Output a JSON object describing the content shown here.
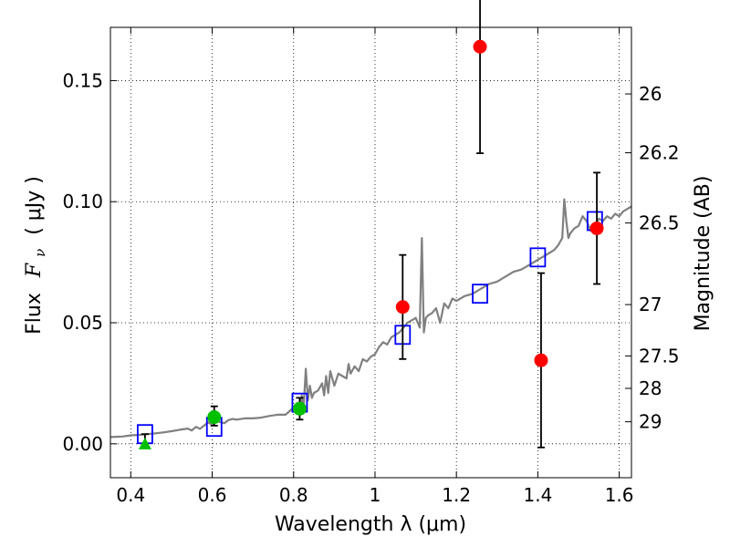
{
  "chart_data": {
    "type": "scatter",
    "xlabel": "Wavelength  λ (μm)",
    "ylabel_main": "Flux",
    "ylabel_symbol": "F",
    "ylabel_sub": "ν",
    "ylabel_unit": "( μJy )",
    "y2label": "Magnitude (AB)",
    "xlim": [
      0.35,
      1.63
    ],
    "ylim": [
      -0.014,
      0.172
    ],
    "grid": true,
    "x_ticks": [
      {
        "value": 0.4,
        "label": "0.4"
      },
      {
        "value": 0.6,
        "label": "0.6"
      },
      {
        "value": 0.8,
        "label": "0.8"
      },
      {
        "value": 1.0,
        "label": "1"
      },
      {
        "value": 1.2,
        "label": "1.2"
      },
      {
        "value": 1.4,
        "label": "1.4"
      },
      {
        "value": 1.6,
        "label": "1.6"
      }
    ],
    "y_ticks": [
      {
        "value": 0.0,
        "label": "0.00"
      },
      {
        "value": 0.05,
        "label": "0.05"
      },
      {
        "value": 0.1,
        "label": "0.10"
      },
      {
        "value": 0.15,
        "label": "0.15"
      }
    ],
    "y2_ticks": [
      {
        "mag": 26,
        "flux": 0.1445,
        "label": "26"
      },
      {
        "mag": 26.2,
        "flux": 0.1202,
        "label": "26.2"
      },
      {
        "mag": 26.5,
        "flux": 0.0912,
        "label": "26.5"
      },
      {
        "mag": 27,
        "flux": 0.0575,
        "label": "27"
      },
      {
        "mag": 27.5,
        "flux": 0.0363,
        "label": "27.5"
      },
      {
        "mag": 28,
        "flux": 0.0229,
        "label": "28"
      },
      {
        "mag": 29,
        "flux": 0.0091,
        "label": "29"
      }
    ],
    "series": [
      {
        "kind": "line",
        "color": "#808080",
        "x": [
          0.35,
          0.38,
          0.4,
          0.42,
          0.44,
          0.46,
          0.48,
          0.5,
          0.52,
          0.54,
          0.55,
          0.56,
          0.57,
          0.58,
          0.59,
          0.6,
          0.61,
          0.62,
          0.63,
          0.64,
          0.65,
          0.66,
          0.68,
          0.7,
          0.72,
          0.74,
          0.76,
          0.78,
          0.79,
          0.8,
          0.81,
          0.815,
          0.82,
          0.825,
          0.83,
          0.835,
          0.84,
          0.845,
          0.85,
          0.86,
          0.87,
          0.875,
          0.88,
          0.885,
          0.89,
          0.9,
          0.91,
          0.92,
          0.93,
          0.935,
          0.94,
          0.95,
          0.96,
          0.97,
          0.98,
          0.99,
          1.0,
          1.01,
          1.02,
          1.03,
          1.04,
          1.05,
          1.06,
          1.07,
          1.08,
          1.09,
          1.1,
          1.11,
          1.115,
          1.12,
          1.125,
          1.13,
          1.14,
          1.15,
          1.16,
          1.17,
          1.18,
          1.19,
          1.2,
          1.22,
          1.24,
          1.26,
          1.28,
          1.3,
          1.32,
          1.34,
          1.36,
          1.38,
          1.4,
          1.42,
          1.43,
          1.44,
          1.45,
          1.46,
          1.465,
          1.47,
          1.475,
          1.48,
          1.49,
          1.5,
          1.51,
          1.52,
          1.53,
          1.54,
          1.55,
          1.56,
          1.57,
          1.58,
          1.59,
          1.6,
          1.61,
          1.62,
          1.63
        ],
        "y": [
          0.0028,
          0.003,
          0.0035,
          0.0037,
          0.004,
          0.0043,
          0.0047,
          0.0052,
          0.0058,
          0.0063,
          0.0055,
          0.007,
          0.0062,
          0.0075,
          0.0088,
          0.008,
          0.0095,
          0.009,
          0.0085,
          0.0098,
          0.0103,
          0.01,
          0.0105,
          0.0105,
          0.0108,
          0.0115,
          0.012,
          0.012,
          0.0135,
          0.015,
          0.017,
          0.013,
          0.02,
          0.016,
          0.031,
          0.018,
          0.024,
          0.019,
          0.021,
          0.022,
          0.025,
          0.02,
          0.028,
          0.021,
          0.03,
          0.024,
          0.029,
          0.028,
          0.027,
          0.033,
          0.029,
          0.032,
          0.03,
          0.035,
          0.034,
          0.036,
          0.037,
          0.04,
          0.042,
          0.041,
          0.044,
          0.045,
          0.046,
          0.048,
          0.05,
          0.051,
          0.052,
          0.048,
          0.085,
          0.046,
          0.052,
          0.053,
          0.054,
          0.056,
          0.05,
          0.058,
          0.056,
          0.06,
          0.059,
          0.061,
          0.062,
          0.064,
          0.066,
          0.067,
          0.069,
          0.071,
          0.072,
          0.074,
          0.076,
          0.078,
          0.079,
          0.08,
          0.082,
          0.085,
          0.101,
          0.092,
          0.085,
          0.087,
          0.089,
          0.09,
          0.094,
          0.092,
          0.088,
          0.09,
          0.093,
          0.092,
          0.094,
          0.093,
          0.095,
          0.094,
          0.096,
          0.097,
          0.098
        ]
      },
      {
        "kind": "marker",
        "marker": "square-open",
        "color": "#0000ff",
        "x": [
          0.435,
          0.605,
          0.815,
          1.068,
          1.258,
          1.4,
          1.54
        ],
        "y": [
          0.004,
          0.007,
          0.017,
          0.045,
          0.062,
          0.077,
          0.092
        ]
      },
      {
        "kind": "marker",
        "marker": "circle",
        "color": "#ff0000",
        "x": [
          1.068,
          1.258,
          1.408,
          1.545
        ],
        "y": [
          0.0565,
          0.164,
          0.0345,
          0.089
        ],
        "err_low": [
          0.0215,
          0.044,
          0.036,
          0.023
        ],
        "err_high": [
          0.0215,
          0.03,
          0.036,
          0.023
        ]
      },
      {
        "kind": "marker",
        "marker": "circle",
        "color": "#00c000",
        "x": [
          0.605,
          0.815
        ],
        "y": [
          0.011,
          0.0145
        ],
        "err_low": [
          0.0035,
          0.0045
        ],
        "err_high": [
          0.0045,
          0.0045
        ]
      },
      {
        "kind": "marker",
        "marker": "triangle-up",
        "color": "#00c000",
        "x": [
          0.435
        ],
        "y": [
          0.0
        ],
        "err_low": [
          0.0
        ],
        "err_high": [
          0.004
        ]
      }
    ]
  }
}
